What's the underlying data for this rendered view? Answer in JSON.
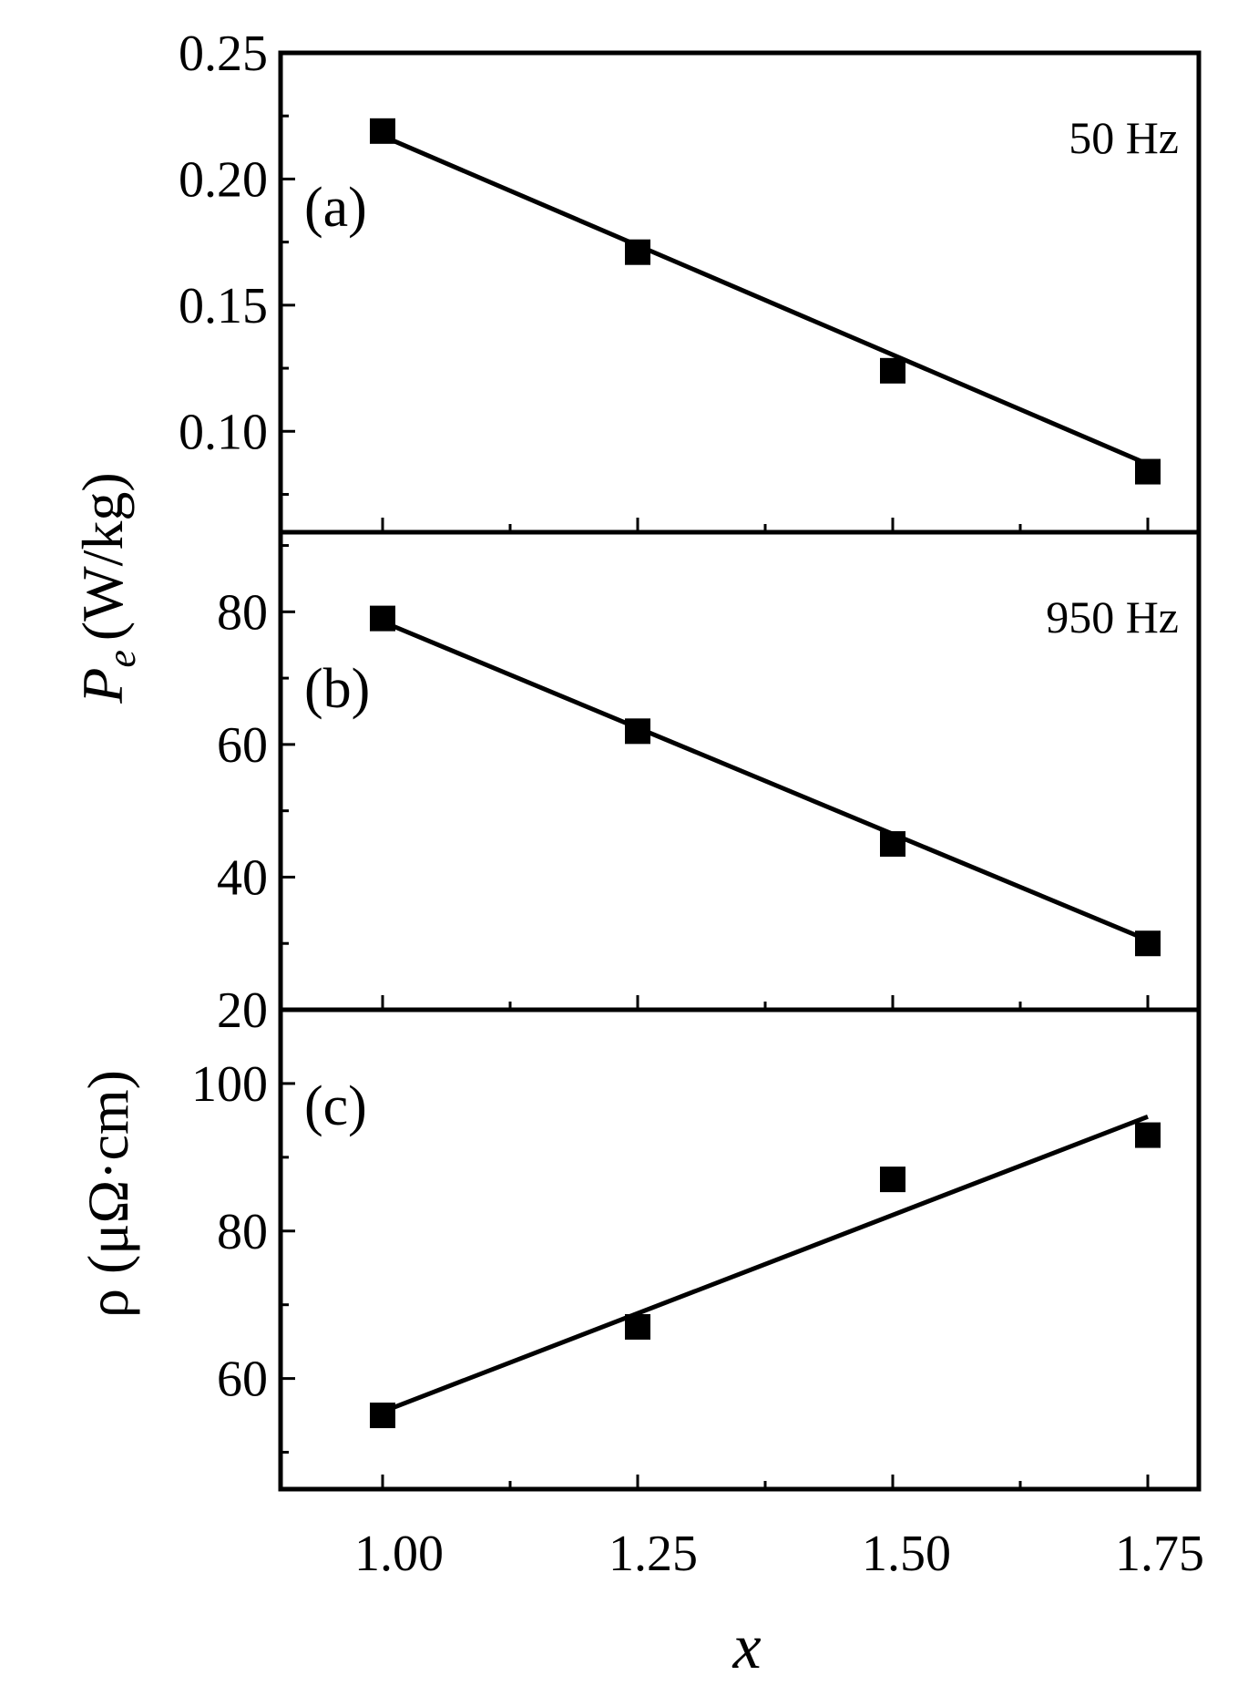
{
  "figure": {
    "xlabel": "x",
    "x_ticks": [
      "1.00",
      "1.25",
      "1.50",
      "1.75"
    ],
    "shared_ylabel_main": "P",
    "shared_ylabel_sub": "e",
    "shared_ylabel_unit": "(W/kg)"
  },
  "chart_data": [
    {
      "type": "scatter",
      "panel": "(a)",
      "annotation": "50 Hz",
      "xlim": [
        0.9,
        1.8
      ],
      "ylim": [
        0.06,
        0.25
      ],
      "y_ticks": [
        0.1,
        0.15,
        0.2,
        0.25
      ],
      "y_tick_labels": [
        "0.10",
        "0.15",
        "0.20",
        "0.25"
      ],
      "x": [
        1.0,
        1.25,
        1.5,
        1.75
      ],
      "y": [
        0.219,
        0.171,
        0.124,
        0.084
      ],
      "fit_line": {
        "x": [
          1.0,
          1.75
        ],
        "y": [
          0.217,
          0.087
        ]
      }
    },
    {
      "type": "scatter",
      "panel": "(b)",
      "annotation": "950 Hz",
      "xlim": [
        0.9,
        1.8
      ],
      "ylim": [
        20,
        92
      ],
      "y_ticks": [
        20,
        40,
        60,
        80
      ],
      "y_tick_labels": [
        "20",
        "40",
        "60",
        "80"
      ],
      "x": [
        1.0,
        1.25,
        1.5,
        1.75
      ],
      "y": [
        79,
        62,
        45,
        30
      ],
      "fit_line": {
        "x": [
          1.0,
          1.75
        ],
        "y": [
          78.5,
          30.5
        ]
      }
    },
    {
      "type": "scatter",
      "panel": "(c)",
      "ylabel": "ρ (μΩ·cm)",
      "xlim": [
        0.9,
        1.8
      ],
      "ylim": [
        45,
        110
      ],
      "y_ticks": [
        60,
        80,
        100
      ],
      "y_tick_labels": [
        "60",
        "80",
        "100"
      ],
      "x": [
        1.0,
        1.25,
        1.5,
        1.75
      ],
      "y": [
        55,
        67,
        87,
        93
      ],
      "fit_line": {
        "x": [
          1.0,
          1.75
        ],
        "y": [
          55.5,
          95.5
        ]
      }
    }
  ]
}
